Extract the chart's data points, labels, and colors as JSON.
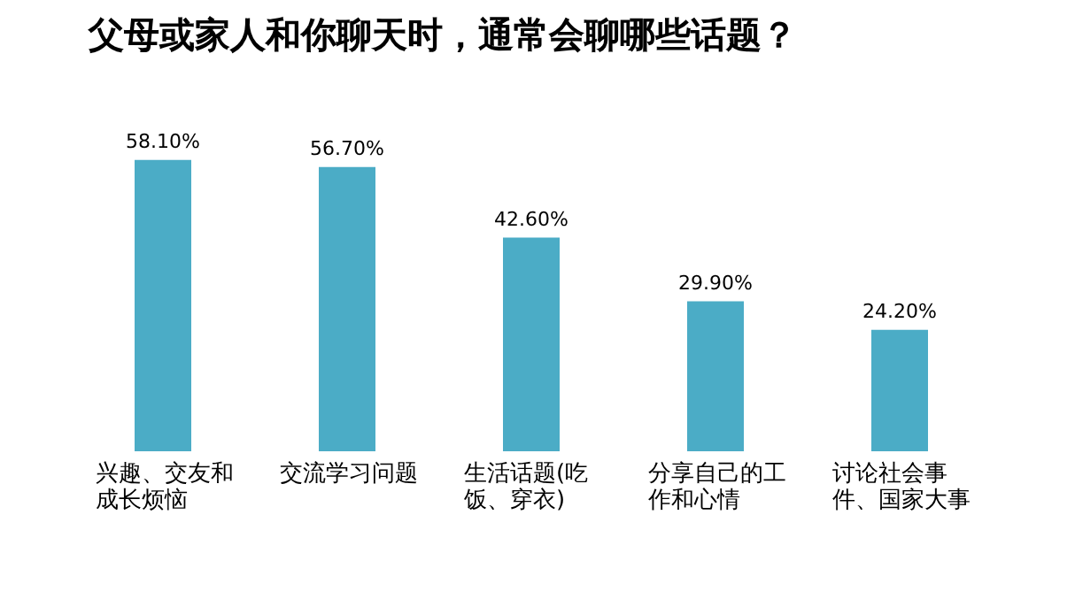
{
  "chart_data": {
    "type": "bar",
    "title": "父母或家人和你聊天时，通常会聊哪些话题？",
    "categories": [
      "兴趣、交友和成长烦恼",
      "交流学习问题",
      "生活话题(吃饭、穿衣)",
      "分享自己的工作和心情",
      "讨论社会事件、国家大事"
    ],
    "values": [
      58.1,
      56.7,
      42.6,
      29.9,
      24.2
    ],
    "value_labels": [
      "58.10%",
      "56.70%",
      "42.60%",
      "29.90%",
      "24.20%"
    ],
    "color": "#4bacc6"
  }
}
